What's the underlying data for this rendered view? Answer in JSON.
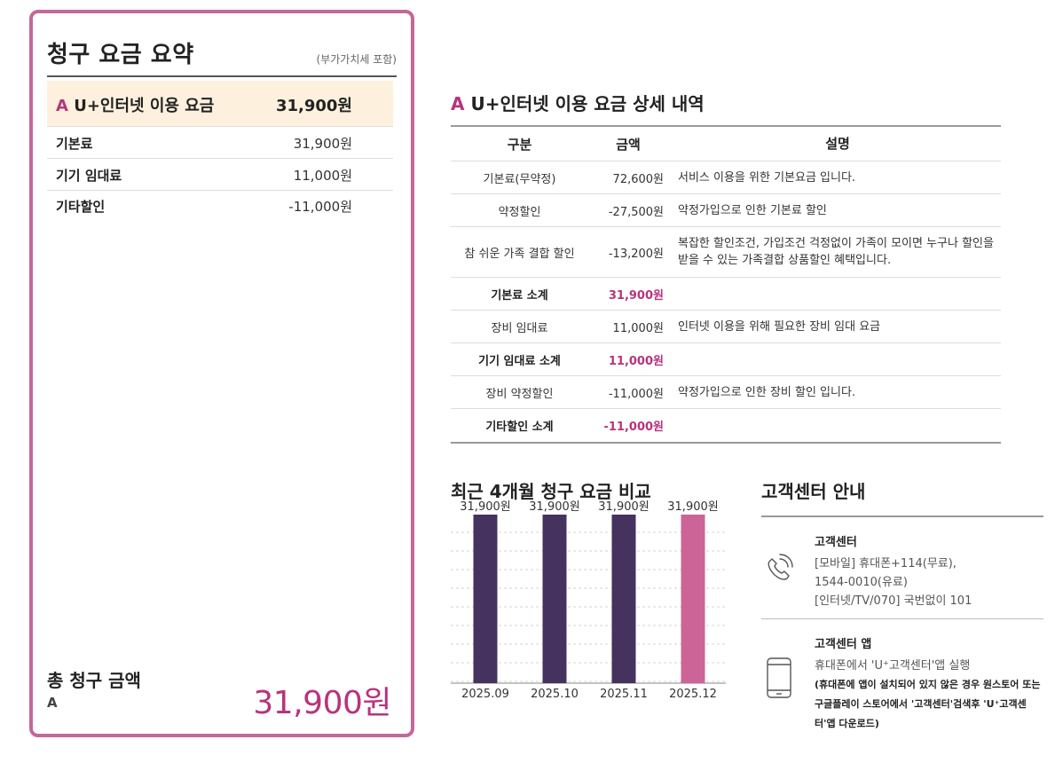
{
  "summary": {
    "title": "청구 요금 요약",
    "vat_note": "(부가가치세 포함)",
    "service_prefix": "A",
    "service_name": "U+인터넷 이용 요금",
    "service_amount": "31,900원",
    "rows": [
      {
        "label": "기본료",
        "value": "31,900원"
      },
      {
        "label": "기기 임대료",
        "value": "11,000원"
      },
      {
        "label": "기타할인",
        "value": "-11,000원"
      }
    ],
    "total_label": "총 청구 금액",
    "total_sub": "A",
    "total_amount": "31,900원"
  },
  "detail": {
    "title_prefix": "A",
    "title": "U+인터넷 이용 요금 상세 내역",
    "headers": [
      "구분",
      "금액",
      "설명"
    ],
    "rows": [
      {
        "category": "기본료(무약정)",
        "amount": "72,600원",
        "desc": "서비스 이용을 위한 기본요금 입니다."
      },
      {
        "category": "약정할인",
        "amount": "-27,500원",
        "desc": "약정가입으로 인한 기본료 할인"
      },
      {
        "category": "참 쉬운 가족 결합 할인",
        "amount": "-13,200원",
        "desc": "복잡한 할인조건, 가입조건 걱정없이 가족이 모이면 누구나 할인을 받을 수 있는 가족결합 상품할인 혜택입니다."
      },
      {
        "category": "기본료 소계",
        "amount": "31,900원",
        "desc": ""
      },
      {
        "category": "장비 임대료",
        "amount": "11,000원",
        "desc": "인터넷 이용을 위해 필요한 장비 임대 요금"
      },
      {
        "category": "기기 임대료 소계",
        "amount": "11,000원",
        "desc": ""
      },
      {
        "category": "장비 약정할인",
        "amount": "-11,000원",
        "desc": "약정가입으로 인한 장비 할인 입니다."
      },
      {
        "category": "기타할인 소계",
        "amount": "-11,000원",
        "desc": ""
      }
    ]
  },
  "chart_data": {
    "type": "bar",
    "title": "최근 4개월 청구 요금 비교",
    "categories": [
      "2025.09",
      "2025.10",
      "2025.11",
      "2025.12"
    ],
    "values": [
      31900,
      31900,
      31900,
      31900
    ],
    "data_labels": [
      "31,900원",
      "31,900원",
      "31,900원",
      "31,900원"
    ],
    "colors": [
      "#46325e",
      "#46325e",
      "#46325e",
      "#cc6497"
    ],
    "ylim": [
      0,
      31900
    ],
    "grid": true
  },
  "customer_center": {
    "title": "고객센터 안내",
    "center_head": "고객센터",
    "center_lines": [
      "[모바일] 휴대폰+114(무료),",
      "1544-0010(유료)",
      "[인터넷/TV/070] 국번없이 101"
    ],
    "app_head": "고객센터 앱",
    "app_line": "휴대폰에서 'U⁺고객센터'앱 실행",
    "app_notes": [
      "(휴대폰에 앱이 설치되어 있지 않은 경우 원스토어 또는",
      "구글플레이 스토어에서 '고객센터'검색후 'U⁺고객센",
      "터'앱 다운로드)"
    ],
    "icons": [
      "headset-phone-icon",
      "mobile-phone-icon"
    ]
  }
}
